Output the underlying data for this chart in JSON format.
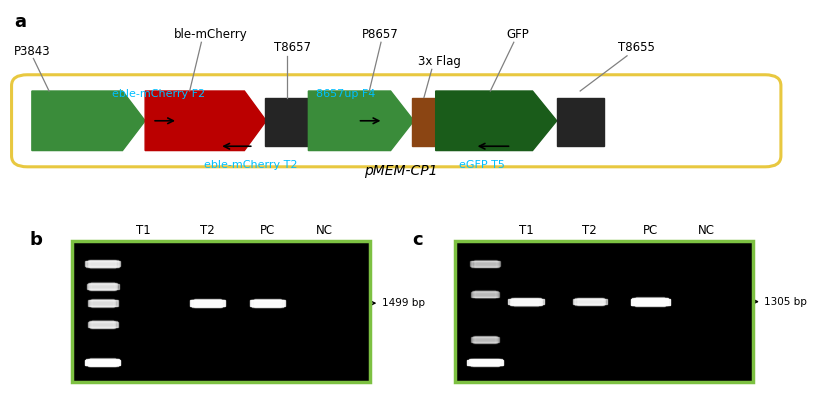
{
  "panel_a_label": "a",
  "panel_b_label": "b",
  "panel_c_label": "c",
  "plasmid_label": "pMEM-CP1",
  "gel_b_lanes": [
    "T1",
    "T2",
    "PC",
    "NC"
  ],
  "gel_b_label": "1499 bp",
  "gel_c_lanes": [
    "T1",
    "T2",
    "PC",
    "NC"
  ],
  "gel_c_label": "1305 bp",
  "cyan": "#00BFFF",
  "green_color": "#3a8c3a",
  "dark_green_color": "#1a5c1a",
  "red_color": "#bb0000",
  "brown_color": "#8B4513",
  "black_elem": "#252525",
  "yellow_border": "#E8C840",
  "gel_border": "#7dc142",
  "background": "#ffffff",
  "label_fs": 8.5,
  "cyan_fs": 8.0,
  "panel_label_fs": 13
}
